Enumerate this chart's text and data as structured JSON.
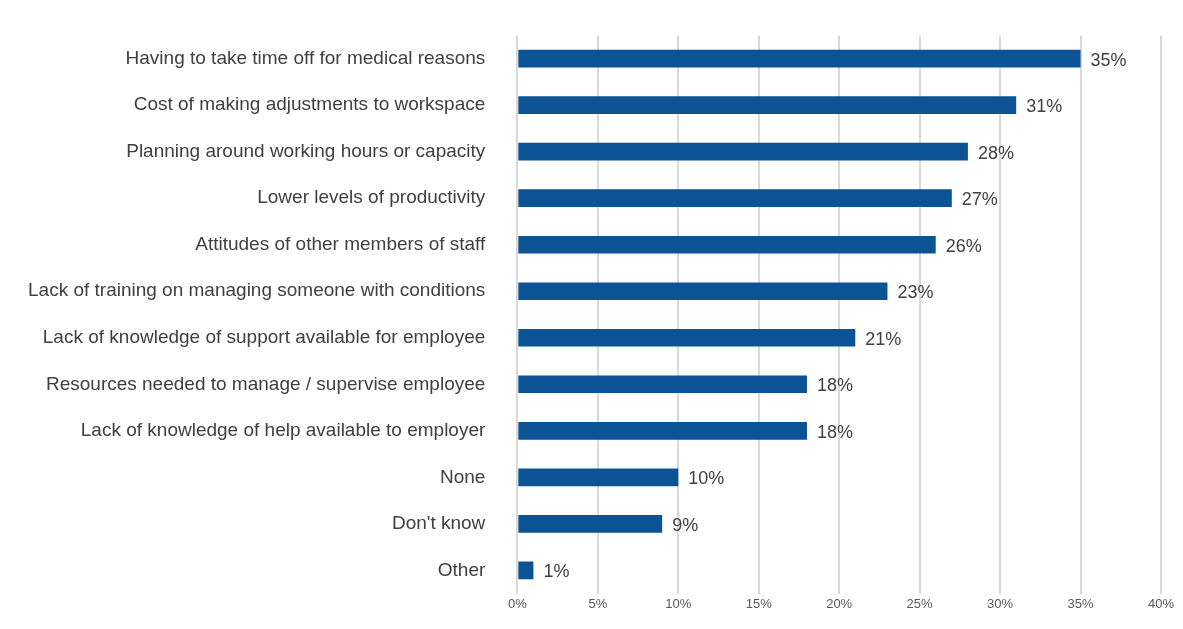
{
  "chart_data": {
    "type": "bar",
    "orientation": "horizontal",
    "categories": [
      "Having to take time off for medical reasons",
      "Cost of making adjustments to workspace",
      "Planning around working hours or capacity",
      "Lower levels of productivity",
      "Attitudes of other members of staff",
      "Lack of training on managing someone with conditions",
      "Lack of knowledge of support available for employee",
      "Resources needed to manage / supervise employee",
      "Lack of knowledge of help available to employer",
      "None",
      "Don't know",
      "Other"
    ],
    "values": [
      35,
      31,
      28,
      27,
      26,
      23,
      21,
      18,
      18,
      10,
      9,
      1
    ],
    "value_labels": [
      "35%",
      "31%",
      "28%",
      "27%",
      "26%",
      "23%",
      "21%",
      "18%",
      "18%",
      "10%",
      "9%",
      "1%"
    ],
    "color": "#0b5394",
    "xlim": [
      0,
      40
    ],
    "xticks": [
      {
        "value": 0,
        "label": "0%"
      },
      {
        "value": 5,
        "label": "5%"
      },
      {
        "value": 10,
        "label": "10%"
      },
      {
        "value": 15,
        "label": "15%"
      },
      {
        "value": 20,
        "label": "20%"
      },
      {
        "value": 25,
        "label": "25%"
      },
      {
        "value": 30,
        "label": "30%"
      },
      {
        "value": 35,
        "label": "35%"
      },
      {
        "value": 40,
        "label": "40%"
      }
    ],
    "grid": "x",
    "legend": false
  }
}
